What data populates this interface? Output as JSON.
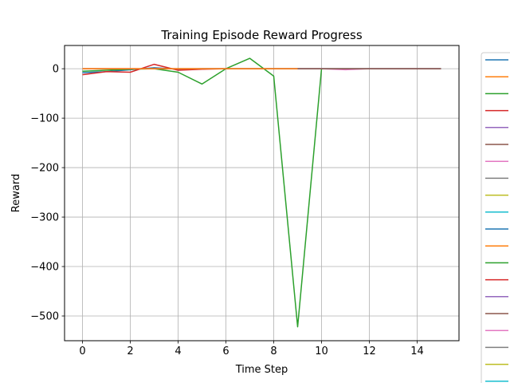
{
  "chart_data": {
    "type": "line",
    "title": "Training Episode Reward Progress",
    "xlabel": "Time Step",
    "ylabel": "Reward",
    "xlim": [
      -0.75,
      15.75
    ],
    "ylim": [
      -550,
      47
    ],
    "xticks": [
      0,
      2,
      4,
      6,
      8,
      10,
      12,
      14
    ],
    "yticks": [
      0,
      -100,
      -200,
      -300,
      -400,
      -500
    ],
    "xtick_labels": [
      "0",
      "2",
      "4",
      "6",
      "8",
      "10",
      "12",
      "14"
    ],
    "ytick_labels": [
      "0",
      "−100",
      "−200",
      "−300",
      "−400",
      "−500"
    ],
    "grid": true,
    "legend": "right, partially cut off, entries unlabeled",
    "palette": [
      "#1f77b4",
      "#ff7f0e",
      "#2ca02c",
      "#d62728",
      "#9467bd",
      "#8c564b",
      "#e377c2",
      "#7f7f7f",
      "#bcbd22",
      "#17becf"
    ],
    "legend_count": 20,
    "series": [
      {
        "color": "#1f77b4",
        "x": [
          0,
          1,
          2,
          3,
          4,
          5,
          6,
          7,
          8,
          9,
          10,
          11,
          12,
          13,
          14,
          15
        ],
        "values": [
          -8,
          -6,
          -2,
          2,
          -1,
          0,
          0,
          0,
          0,
          0,
          0,
          0,
          0,
          0,
          0,
          0
        ]
      },
      {
        "color": "#2ca02c",
        "x": [
          0,
          1,
          2,
          3,
          4,
          5,
          6,
          7,
          8,
          9,
          10
        ],
        "values": [
          -5,
          -3,
          -1,
          0,
          -7,
          -31,
          0,
          21,
          -15,
          -522,
          0
        ]
      },
      {
        "color": "#d62728",
        "x": [
          0,
          1,
          2,
          3,
          4,
          5,
          6
        ],
        "values": [
          -12,
          -6,
          -7,
          9,
          -3,
          -1,
          0
        ]
      },
      {
        "color": "#e377c2",
        "x": [
          0,
          1,
          2,
          3,
          4,
          5,
          6,
          7,
          8,
          9,
          10,
          11,
          12,
          13,
          14,
          15
        ],
        "values": [
          0,
          0,
          0,
          0,
          0,
          0,
          0,
          0,
          0,
          0,
          0,
          -2,
          0,
          0,
          0,
          0
        ]
      },
      {
        "color": "#7f7f7f",
        "x": [
          9,
          10,
          11,
          12,
          13,
          14,
          15
        ],
        "values": [
          0,
          0,
          0,
          0,
          0,
          0,
          0
        ]
      },
      {
        "color": "#8c564b",
        "x": [
          0,
          1,
          2,
          3,
          4,
          5,
          6,
          7,
          8,
          9,
          10,
          11,
          12,
          13,
          14,
          15
        ],
        "values": [
          0,
          0,
          0,
          0,
          0,
          0,
          0,
          0,
          0,
          0,
          0,
          0,
          0,
          0,
          0,
          0
        ]
      },
      {
        "color": "#ff7f0e",
        "x": [
          0,
          1,
          2,
          3,
          4,
          5,
          6,
          7,
          8,
          9
        ],
        "values": [
          0,
          0,
          0,
          0,
          0,
          0,
          0,
          0,
          0,
          0
        ]
      }
    ]
  }
}
